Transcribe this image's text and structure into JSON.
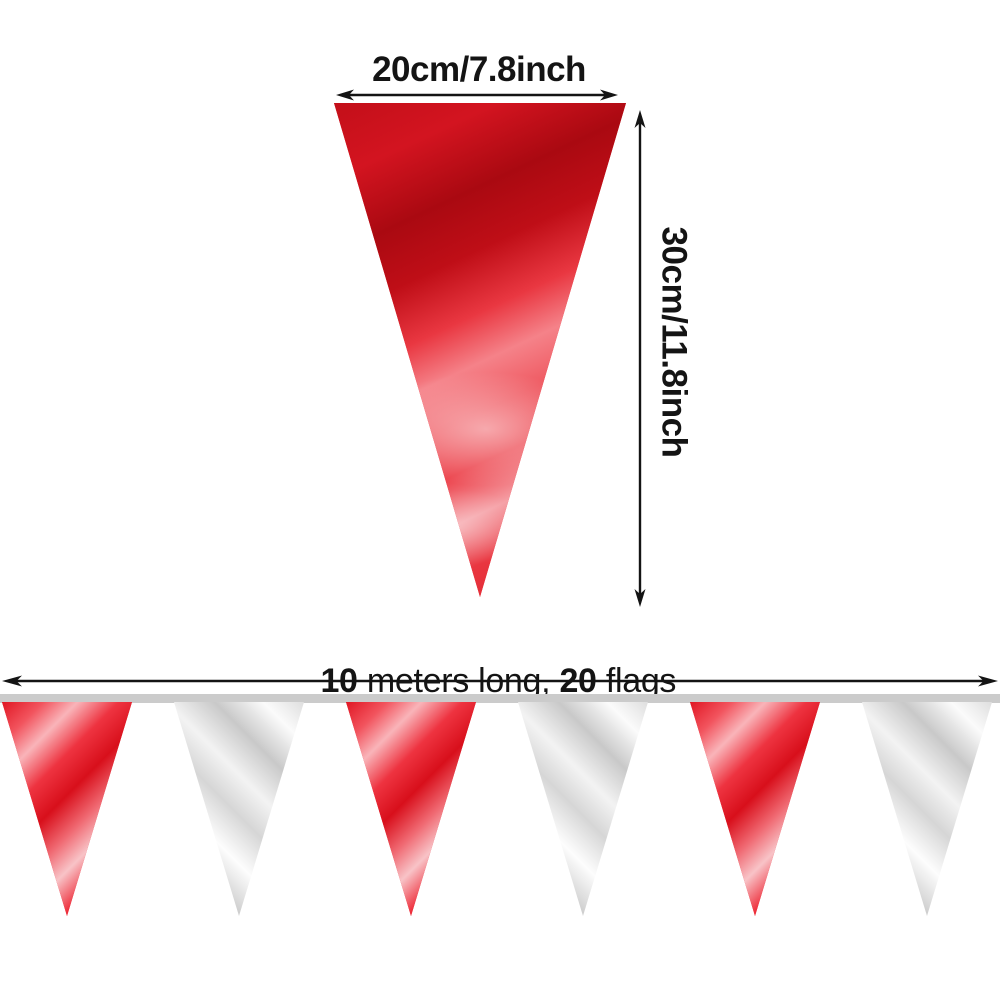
{
  "image": {
    "description_label": "pennant-banner-size-diagram"
  },
  "flag_diagram": {
    "width_label": "20cm/7.8inch",
    "height_label": "30cm/11.8inch"
  },
  "banner": {
    "label_parts": [
      {
        "text": "10",
        "bold": true
      },
      {
        "text": " meters long, ",
        "bold": false
      },
      {
        "text": "20",
        "bold": true
      },
      {
        "text": " flags",
        "bold": false
      }
    ],
    "flag_colors": [
      "red",
      "silver",
      "red",
      "silver",
      "red",
      "silver"
    ]
  },
  "colors": {
    "flag_red": "#e4212c",
    "flag_silver": "#e9e9e9",
    "string_gray": "#cbcbcb",
    "ink": "#141414"
  }
}
